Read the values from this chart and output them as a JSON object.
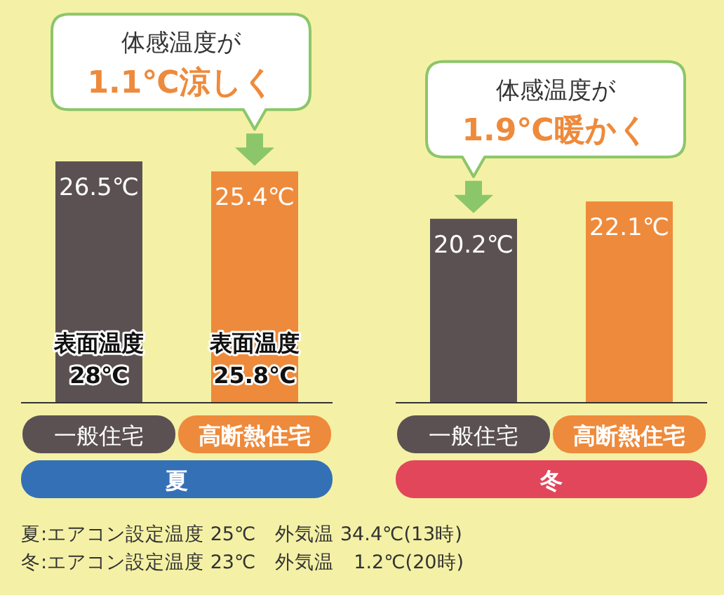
{
  "chart_data": [
    {
      "type": "bar",
      "categories": [
        "一般住宅",
        "高断熱住宅"
      ],
      "values": [
        26.5,
        25.4
      ],
      "colors": [
        "#5b5153",
        "#ee8a3b"
      ],
      "value_labels": [
        "26.5℃",
        "25.4℃"
      ],
      "xlabel": "夏",
      "annotations": [
        {
          "text": "体感温度が\n1.1℃涼しく",
          "x": "高断熱住宅",
          "y": 25.4
        },
        "表面温度\n28℃",
        "表面温度\n25.8℃",
        "夏:エアコン設定温度 25℃　外気温 34.4℃(13時)"
      ]
    },
    {
      "type": "bar",
      "categories": [
        "一般住宅",
        "高断熱住宅"
      ],
      "values": [
        20.2,
        22.1
      ],
      "colors": [
        "#5b5153",
        "#ee8a3b"
      ],
      "value_labels": [
        "20.2℃",
        "22.1℃"
      ],
      "xlabel": "冬",
      "annotations": [
        {
          "text": "体感温度が\n1.9℃暖かく",
          "x": "一般住宅",
          "y": 20.2
        },
        "冬:エアコン設定温度 23℃　外気温　1.2℃(20時)"
      ]
    }
  ]
}
